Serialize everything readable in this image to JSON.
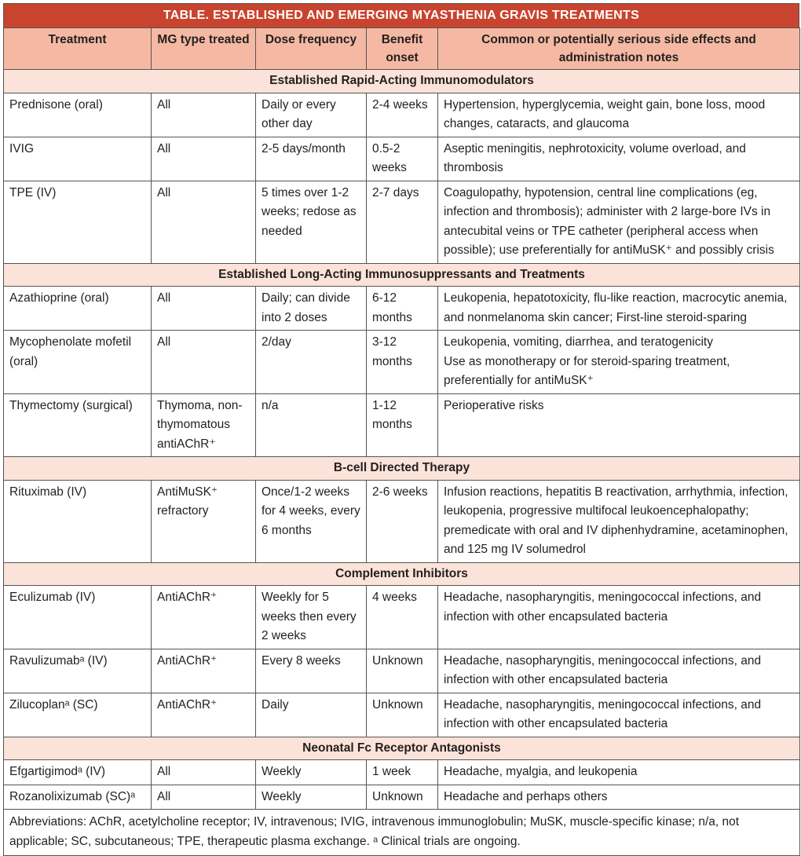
{
  "title": "TABLE. ESTABLISHED AND EMERGING MYASTHENIA GRAVIS TREATMENTS",
  "table": {
    "headers": [
      "Treatment",
      "MG type treated",
      "Dose frequency",
      "Benefit onset",
      "Common or potentially serious side effects and administration notes"
    ],
    "sections": [
      {
        "title": "Established Rapid-Acting Immunomodulators",
        "rows": [
          [
            "Prednisone (oral)",
            "All",
            "Daily or every other day",
            "2-4 weeks",
            "Hypertension, hyperglycemia, weight gain, bone loss, mood changes, cataracts, and glaucoma"
          ],
          [
            "IVIG",
            "All",
            "2-5 days/month",
            "0.5-2 weeks",
            "Aseptic meningitis, nephrotoxicity, volume overload, and thrombosis"
          ],
          [
            "TPE (IV)",
            "All",
            "5 times over 1-2 weeks; redose as needed",
            "2-7 days",
            "Coagulopathy, hypotension, central line complications (eg, infection and thrombosis); administer with 2 large-bore IVs in antecubital veins or TPE catheter (peripheral access when possible); use preferentially for antiMuSK⁺ and possibly crisis"
          ]
        ]
      },
      {
        "title": "Established Long-Acting Immunosuppressants and Treatments",
        "rows": [
          [
            "Azathioprine (oral)",
            "All",
            "Daily; can divide into 2 doses",
            "6-12 months",
            "Leukopenia, hepatotoxicity, flu-like reaction, macrocytic anemia, and nonmelanoma skin cancer; First-line steroid-sparing"
          ],
          [
            "Mycophenolate mofetil (oral)",
            "All",
            "2/day",
            "3-12 months",
            "Leukopenia, vomiting, diarrhea, and teratogenicity\nUse as monotherapy or for steroid-sparing treatment, preferentially for antiMuSK⁺"
          ],
          [
            "Thymectomy (surgical)",
            "Thymoma, non-thymomatous antiAChR⁺",
            "n/a",
            "1-12 months",
            "Perioperative risks"
          ]
        ]
      },
      {
        "title": "B-cell Directed Therapy",
        "rows": [
          [
            "Rituximab (IV)",
            "AntiMuSK⁺ refractory",
            "Once/1-2 weeks for 4 weeks, every 6 months",
            "2-6 weeks",
            "Infusion reactions, hepatitis B reactivation, arrhythmia, infection, leukopenia, progressive multifocal leukoencephalopathy; premedicate with oral and IV diphenhydramine, acetaminophen, and 125 mg IV solumedrol"
          ]
        ]
      },
      {
        "title": "Complement Inhibitors",
        "rows": [
          [
            "Eculizumab (IV)",
            "AntiAChR⁺",
            "Weekly for 5 weeks then every 2 weeks",
            "4 weeks",
            "Headache, nasopharyngitis, meningococcal infections, and infection with other encapsulated bacteria"
          ],
          [
            "Ravulizumabᵃ (IV)",
            "AntiAChR⁺",
            "Every 8 weeks",
            "Unknown",
            "Headache, nasopharyngitis, meningococcal infections, and infection with other encapsulated bacteria"
          ],
          [
            "Zilucoplanᵃ (SC)",
            "AntiAChR⁺",
            "Daily",
            "Unknown",
            "Headache, nasopharyngitis, meningococcal infections, and infection with other encapsulated bacteria"
          ]
        ]
      },
      {
        "title": "Neonatal Fc Receptor Antagonists",
        "rows": [
          [
            "Efgartigimodᵃ (IV)",
            "All",
            "Weekly",
            "1 week",
            "Headache, myalgia, and leukopenia"
          ],
          [
            "Rozanolixizumab (SC)ᵃ",
            "All",
            "Weekly",
            "Unknown",
            "Headache and perhaps others"
          ]
        ]
      }
    ],
    "footnote": "Abbreviations: AChR, acetylcholine receptor; IV, intravenous; IVIG, intravenous immunoglobulin; MuSK, muscle-specific kinase; n/a, not applicable; SC, subcutaneous; TPE, therapeutic plasma exchange.  ᵃ Clinical trials are ongoing."
  }
}
